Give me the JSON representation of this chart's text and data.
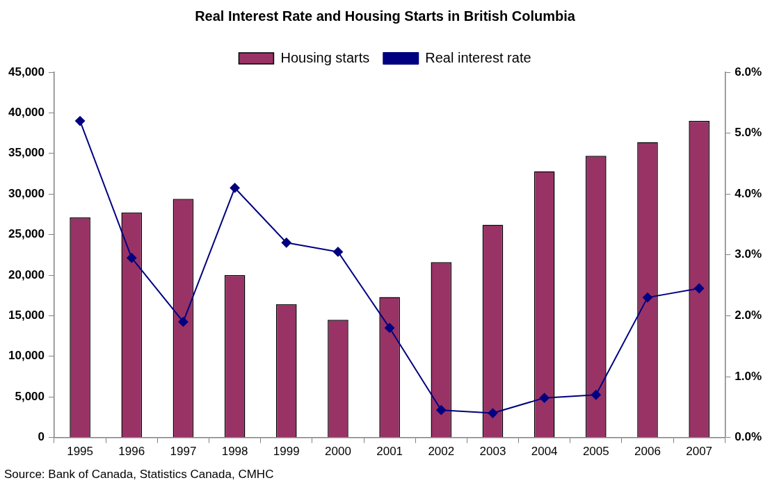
{
  "chart_data": {
    "type": "bar",
    "title": "Real Interest Rate and Housing Starts in British Columbia",
    "categories": [
      "1995",
      "1996",
      "1997",
      "1998",
      "1999",
      "2000",
      "2001",
      "2002",
      "2003",
      "2004",
      "2005",
      "2006",
      "2007"
    ],
    "series": [
      {
        "name": "Housing starts",
        "color": "#993366",
        "values": [
          27100,
          27700,
          29400,
          20000,
          16400,
          14500,
          17300,
          21600,
          26200,
          32800,
          34700,
          36400,
          39000
        ]
      },
      {
        "name": "Real interest rate",
        "type": "line",
        "axis": "y2",
        "color": "#000080",
        "marker": "diamond",
        "values": [
          5.2,
          2.95,
          1.9,
          4.1,
          3.2,
          3.05,
          1.8,
          0.45,
          0.4,
          0.65,
          0.7,
          2.3,
          2.45
        ]
      }
    ],
    "ylim": [
      0,
      45000
    ],
    "yticks": [
      {
        "value": 0,
        "label": "0"
      },
      {
        "value": 5000,
        "label": "5,000"
      },
      {
        "value": 10000,
        "label": "10,000"
      },
      {
        "value": 15000,
        "label": "15,000"
      },
      {
        "value": 20000,
        "label": "20,000"
      },
      {
        "value": 25000,
        "label": "25,000"
      },
      {
        "value": 30000,
        "label": "30,000"
      },
      {
        "value": 35000,
        "label": "35,000"
      },
      {
        "value": 40000,
        "label": "40,000"
      },
      {
        "value": 45000,
        "label": "45,000"
      }
    ],
    "y2lim": [
      0,
      6
    ],
    "y2ticks": [
      {
        "value": 0,
        "label": "0.0%"
      },
      {
        "value": 1,
        "label": "1.0%"
      },
      {
        "value": 2,
        "label": "2.0%"
      },
      {
        "value": 3,
        "label": "3.0%"
      },
      {
        "value": 4,
        "label": "4.0%"
      },
      {
        "value": 5,
        "label": "5.0%"
      },
      {
        "value": 6,
        "label": "6.0%"
      }
    ],
    "grid": false,
    "legend": "top",
    "annotations": [
      "Source: Bank of Canada, Statistics Canada, CMHC"
    ]
  }
}
